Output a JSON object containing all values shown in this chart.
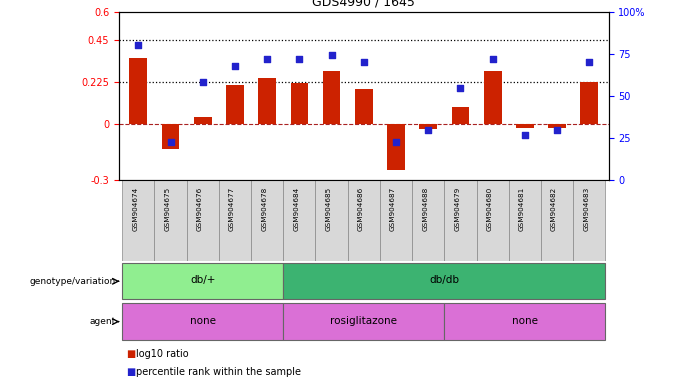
{
  "title": "GDS4990 / 1645",
  "samples": [
    "GSM904674",
    "GSM904675",
    "GSM904676",
    "GSM904677",
    "GSM904678",
    "GSM904684",
    "GSM904685",
    "GSM904686",
    "GSM904687",
    "GSM904688",
    "GSM904679",
    "GSM904680",
    "GSM904681",
    "GSM904682",
    "GSM904683"
  ],
  "log10_ratio": [
    0.35,
    -0.13,
    0.04,
    0.21,
    0.245,
    0.22,
    0.285,
    0.185,
    -0.245,
    -0.025,
    0.09,
    0.285,
    -0.02,
    -0.02,
    0.225
  ],
  "percentile": [
    80,
    23,
    58,
    68,
    72,
    72,
    74,
    70,
    23,
    30,
    55,
    72,
    27,
    30,
    70
  ],
  "genotype_groups": [
    {
      "label": "db/+",
      "start": 0,
      "end": 5,
      "color": "#90EE90"
    },
    {
      "label": "db/db",
      "start": 5,
      "end": 15,
      "color": "#3CB371"
    }
  ],
  "agent_groups": [
    {
      "label": "none",
      "start": 0,
      "end": 5,
      "color": "#DA70D6"
    },
    {
      "label": "rosiglitazone",
      "start": 5,
      "end": 10,
      "color": "#DA70D6"
    },
    {
      "label": "none",
      "start": 10,
      "end": 15,
      "color": "#DA70D6"
    }
  ],
  "ylim_left": [
    -0.3,
    0.6
  ],
  "ylim_right": [
    0,
    100
  ],
  "yticks_left": [
    -0.3,
    0.0,
    0.225,
    0.45,
    0.6
  ],
  "yticks_right": [
    0,
    25,
    50,
    75,
    100
  ],
  "hlines": [
    0.225,
    0.45
  ],
  "bar_color": "#CC2200",
  "dot_color": "#2222CC",
  "zero_line_color": "#AA2222",
  "cell_color": "#D8D8D8"
}
